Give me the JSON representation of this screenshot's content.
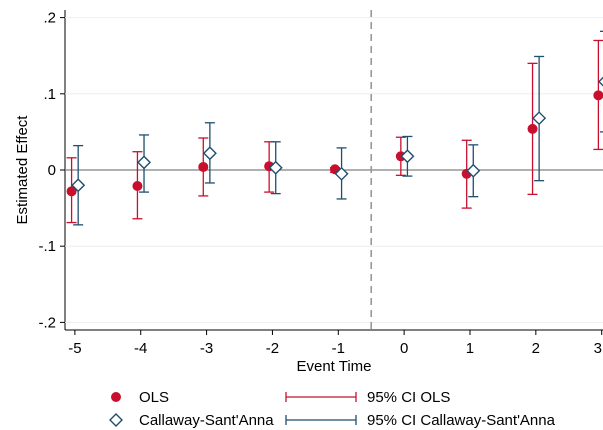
{
  "chart_data": {
    "type": "scatter",
    "xlabel": "Event Time",
    "ylabel": "Estimated Effect",
    "x_ticks": [
      -5,
      -4,
      -3,
      -2,
      -1,
      0,
      1,
      2,
      3
    ],
    "x_tick_labels": [
      "-5",
      "-4",
      "-3",
      "-2",
      "-1",
      "0",
      "1",
      "2",
      "3"
    ],
    "y_ticks": [
      -0.2,
      -0.1,
      0,
      0.1,
      0.2
    ],
    "y_tick_labels": [
      "-.2",
      "-.1",
      "0",
      ".1",
      ".2"
    ],
    "xlim": [
      -5.15,
      3.02
    ],
    "ylim": [
      -0.21,
      0.21
    ],
    "reference_line": {
      "x": -0.5,
      "style": "dashed",
      "color": "#999999"
    },
    "zero_line": {
      "y": 0,
      "color": "#808080"
    },
    "series": [
      {
        "name": "OLS",
        "marker": "filled-circle",
        "color": "#c8102e",
        "x": [
          -5,
          -4,
          -3,
          -2,
          -1,
          0,
          1,
          2,
          3
        ],
        "y": [
          -0.028,
          -0.021,
          0.004,
          0.005,
          0.001,
          0.018,
          -0.005,
          0.054,
          0.098
        ]
      },
      {
        "name": "Callaway-Sant'Anna",
        "marker": "hollow-diamond",
        "color": "#1f4e6e",
        "x": [
          -5,
          -4,
          -3,
          -2,
          -1,
          0,
          1,
          2,
          3
        ],
        "y": [
          -0.02,
          0.01,
          0.022,
          0.003,
          -0.005,
          0.018,
          -0.001,
          0.068,
          0.116
        ]
      }
    ],
    "intervals": [
      {
        "name": "95% CI OLS",
        "color": "#c8102e",
        "x": [
          -5,
          -4,
          -3,
          -2,
          -1,
          0,
          1,
          2,
          3
        ],
        "lower": [
          -0.069,
          -0.064,
          -0.034,
          -0.029,
          -0.003,
          -0.007,
          -0.05,
          -0.032,
          0.027
        ],
        "upper": [
          0.016,
          0.024,
          0.042,
          0.037,
          0.003,
          0.043,
          0.039,
          0.14,
          0.17
        ]
      },
      {
        "name": "95% CI Callaway-Sant'Anna",
        "color": "#1f4e6e",
        "x": [
          -5,
          -4,
          -3,
          -2,
          -1,
          0,
          1,
          2,
          3
        ],
        "lower": [
          -0.072,
          -0.029,
          -0.017,
          -0.031,
          -0.038,
          -0.008,
          -0.035,
          -0.014,
          0.05
        ],
        "upper": [
          0.032,
          0.046,
          0.062,
          0.037,
          0.029,
          0.044,
          0.033,
          0.149,
          0.182
        ]
      }
    ],
    "legend": {
      "placement": "bottom",
      "entries": [
        "OLS",
        "95% CI OLS",
        "Callaway-Sant'Anna",
        "95% CI Callaway-Sant'Anna"
      ]
    }
  }
}
